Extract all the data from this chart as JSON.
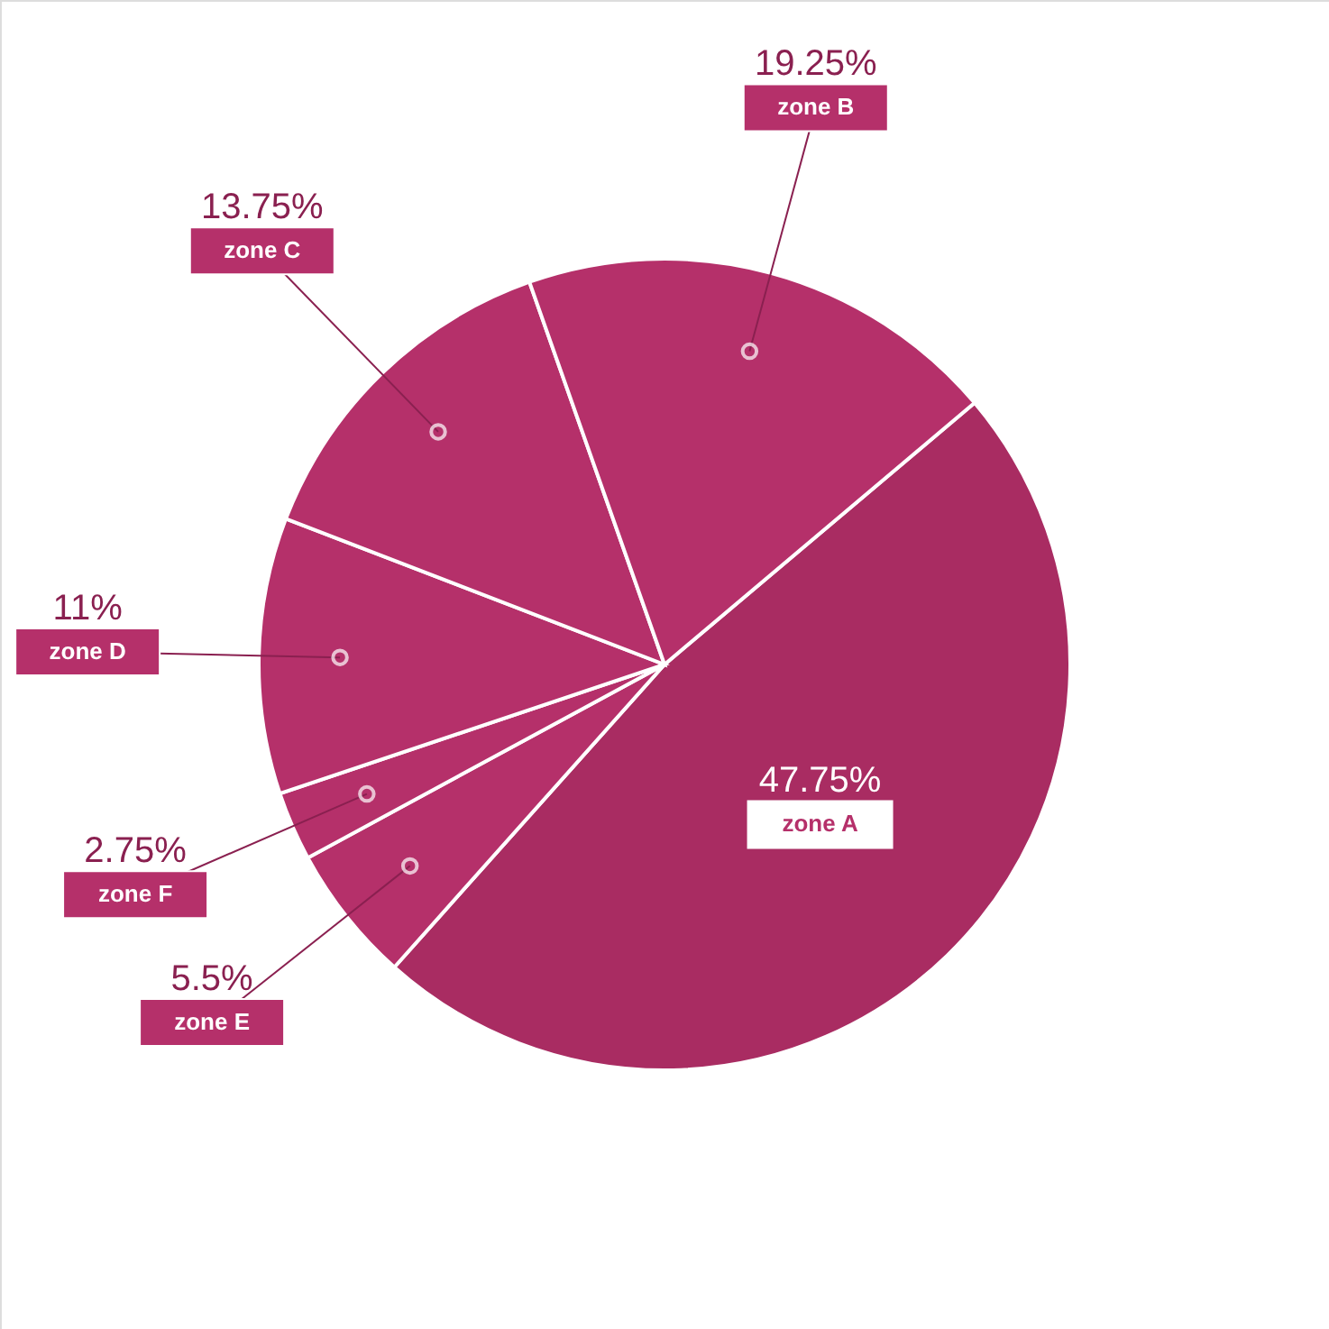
{
  "chart_data": {
    "type": "pie",
    "categories": [
      "zone A",
      "zone E",
      "zone F",
      "zone D",
      "zone C",
      "zone B"
    ],
    "values": [
      47.75,
      5.5,
      2.75,
      11,
      13.75,
      19.25
    ],
    "value_labels": [
      "47.75%",
      "5.5%",
      "2.75%",
      "11%",
      "13.75%",
      "19.25%"
    ],
    "colors": [
      "#a92c62",
      "#b5306a",
      "#b5306a",
      "#b5306a",
      "#b5306a",
      "#b5306a"
    ]
  }
}
